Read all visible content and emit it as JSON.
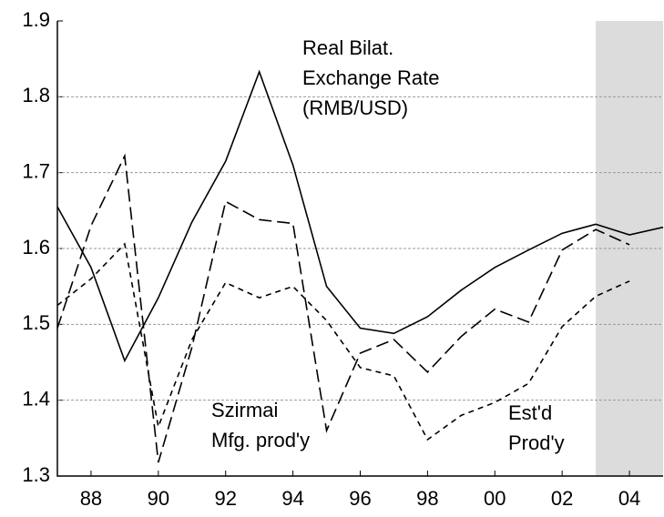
{
  "chart_data": {
    "type": "line",
    "annotations": [
      [
        "Real Bilat.",
        "Exchange Rate",
        "(RMB/USD)"
      ],
      [
        "Szirmai",
        "Mfg. prod'y"
      ],
      [
        "Est'd",
        "Prod'y"
      ]
    ],
    "x": [
      1987,
      1988,
      1989,
      1990,
      1991,
      1992,
      1993,
      1994,
      1995,
      1996,
      1997,
      1998,
      1999,
      2000,
      2001,
      2002,
      2003,
      2004,
      2005
    ],
    "series": [
      {
        "color": "#000000",
        "dash": "solid",
        "values": [
          1.655,
          1.575,
          1.452,
          1.535,
          1.635,
          1.715,
          1.833,
          1.71,
          1.55,
          1.495,
          1.488,
          1.51,
          1.545,
          1.575,
          1.598,
          1.62,
          1.632,
          1.618,
          1.628
        ]
      },
      {
        "color": "#000000",
        "dash": "long",
        "values": [
          1.495,
          1.63,
          1.722,
          1.318,
          1.47,
          1.662,
          1.638,
          1.633,
          1.36,
          1.462,
          1.48,
          1.437,
          1.484,
          1.52,
          1.503,
          1.598,
          1.625,
          1.605,
          null
        ]
      },
      {
        "color": "#000000",
        "dash": "short",
        "values": [
          1.525,
          1.56,
          1.606,
          1.365,
          1.48,
          1.555,
          1.535,
          1.55,
          1.505,
          1.443,
          1.432,
          1.348,
          1.38,
          1.397,
          1.422,
          1.497,
          1.537,
          1.557,
          null
        ]
      }
    ],
    "xlim": [
      1987,
      2005
    ],
    "xticks": [
      {
        "value": 1988,
        "label": "88"
      },
      {
        "value": 1990,
        "label": "90"
      },
      {
        "value": 1992,
        "label": "92"
      },
      {
        "value": 1994,
        "label": "94"
      },
      {
        "value": 1996,
        "label": "96"
      },
      {
        "value": 1998,
        "label": "98"
      },
      {
        "value": 2000,
        "label": "00"
      },
      {
        "value": 2002,
        "label": "02"
      },
      {
        "value": 2004,
        "label": "04"
      }
    ],
    "ylim": [
      1.3,
      1.9
    ],
    "yticks": [
      1.3,
      1.4,
      1.5,
      1.6,
      1.7,
      1.8,
      1.9
    ],
    "grid": true,
    "shade": [
      2003,
      2005
    ]
  }
}
